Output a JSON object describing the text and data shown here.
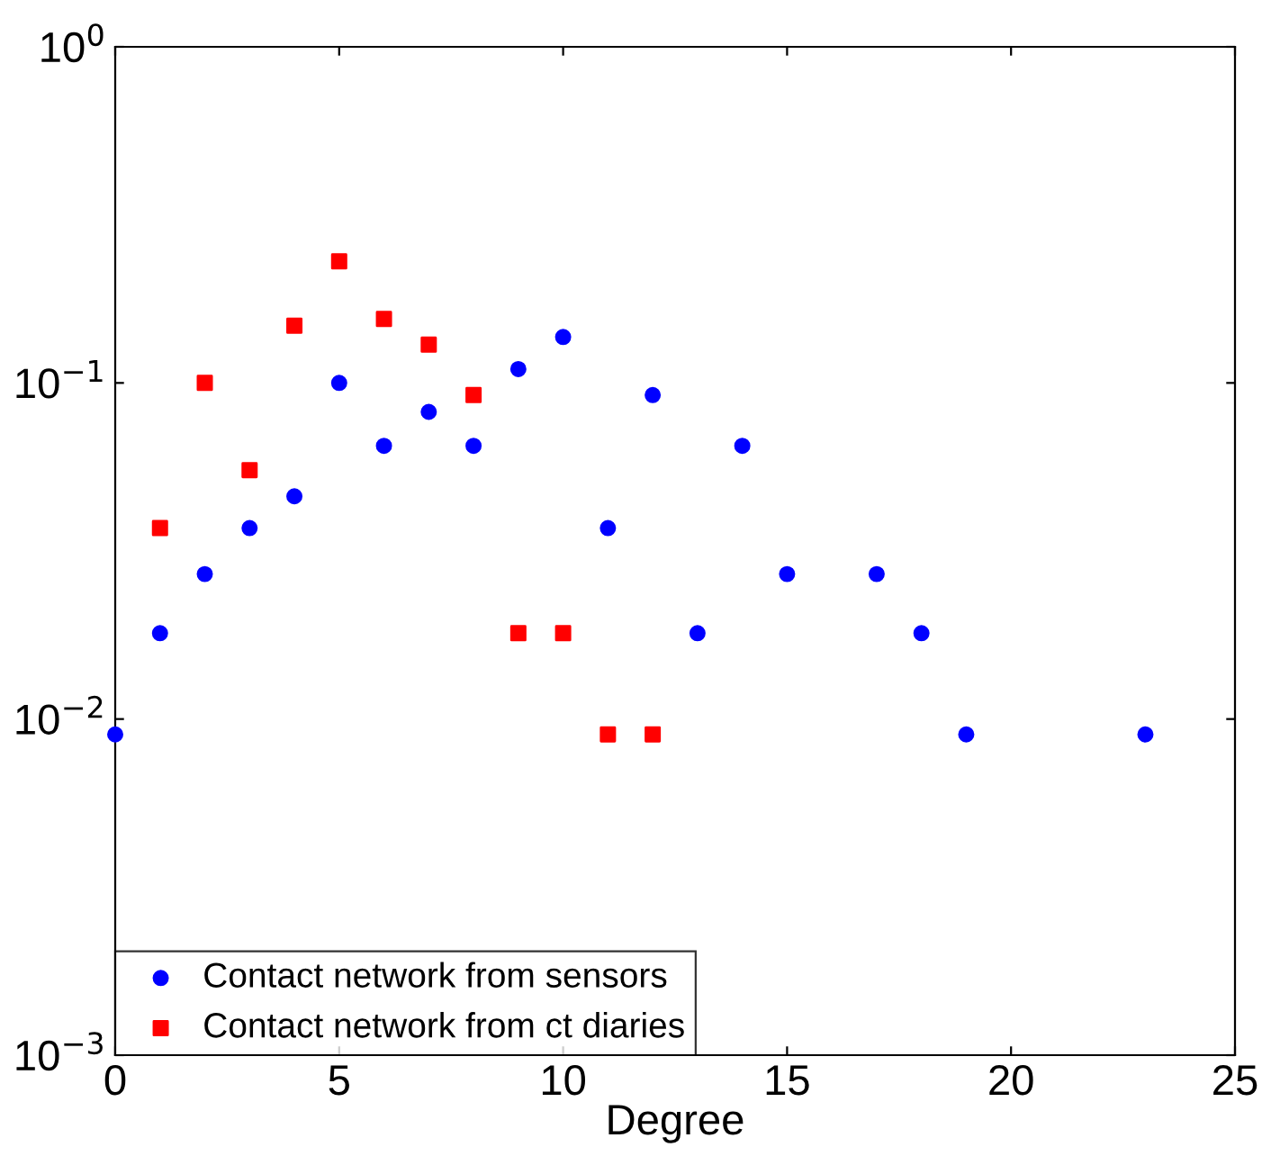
{
  "chart_data": {
    "type": "scatter",
    "xlabel": "Degree",
    "xlim": [
      0,
      25
    ],
    "xticks": [
      0,
      5,
      10,
      15,
      20,
      25
    ],
    "ylim": [
      0.001,
      1
    ],
    "log": "y",
    "yticks": [
      {
        "value": 0.001,
        "label": "10$^{−3}$"
      },
      {
        "value": 0.01,
        "label": "10$^{−2}$"
      },
      {
        "value": 0.1,
        "label": "10$^{−1}$"
      },
      {
        "value": 1,
        "label": "10$^{0}$"
      }
    ],
    "grid": false,
    "legend": "bottom left",
    "series": [
      {
        "name": "Contact network from sensors",
        "color": "#0000ff",
        "marker": "circle",
        "x": [
          0,
          1,
          2,
          3,
          4,
          5,
          6,
          7,
          8,
          9,
          10,
          11,
          12,
          13,
          14,
          15,
          17,
          18,
          19,
          23
        ],
        "values": [
          0.009,
          0.018,
          0.027,
          0.037,
          0.046,
          0.1,
          0.065,
          0.082,
          0.065,
          0.11,
          0.137,
          0.037,
          0.092,
          0.018,
          0.065,
          0.027,
          0.027,
          0.018,
          0.009,
          0.009
        ]
      },
      {
        "name": "Contact network from ct diaries",
        "color": "#ff0000",
        "marker": "square",
        "x": [
          1,
          2,
          3,
          4,
          5,
          6,
          7,
          8,
          9,
          10,
          11,
          12
        ],
        "values": [
          0.037,
          0.1,
          0.055,
          0.148,
          0.23,
          0.155,
          0.13,
          0.092,
          0.018,
          0.018,
          0.009,
          0.009
        ]
      }
    ]
  }
}
